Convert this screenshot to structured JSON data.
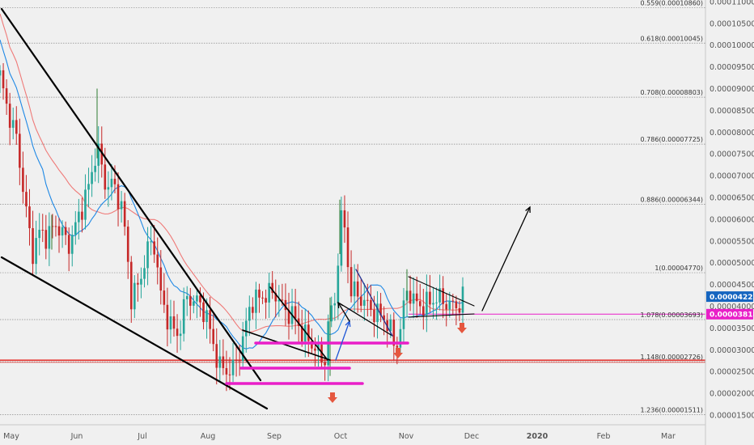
{
  "chart_data": {
    "type": "candlestick",
    "title": "",
    "xlabel": "",
    "ylabel": "",
    "x_ticks": [
      "May",
      "Jun",
      "Jul",
      "Aug",
      "Sep",
      "Oct",
      "Nov",
      "Dec",
      "2020",
      "Feb",
      "Mar"
    ],
    "y_ticks": [
      "0.00011000",
      "0.00010500",
      "0.00010000",
      "0.00009500",
      "0.00009000",
      "0.00008500",
      "0.00008000",
      "0.00007500",
      "0.00007000",
      "0.00006500",
      "0.00006000",
      "0.00005500",
      "0.00005000",
      "0.00004500",
      "0.00004000",
      "0.00003500",
      "0.00003000",
      "0.00002500",
      "0.00002000",
      "0.00001500"
    ],
    "ylim": [
      1.36e-05,
      0.0001105
    ],
    "grid": false,
    "price_tags": [
      {
        "label": "0.00004221",
        "value": 4.221e-05,
        "color": "#1565c0"
      },
      {
        "label": "0.00003818",
        "value": 3.818e-05,
        "color": "#e91ec8"
      }
    ],
    "fib_levels": [
      {
        "label": "0.559(0.00010860)",
        "value": 0.0001086
      },
      {
        "label": "0.618(0.00010045)",
        "value": 0.00010045
      },
      {
        "label": "0.708(0.00008803)",
        "value": 8.803e-05
      },
      {
        "label": "0.786(0.00007725)",
        "value": 7.725e-05
      },
      {
        "label": "0.886(0.00006344)",
        "value": 6.344e-05
      },
      {
        "label": "1(0.00004770)",
        "value": 4.77e-05
      },
      {
        "label": "1.078(0.00003693)",
        "value": 3.693e-05
      },
      {
        "label": "1.148(0.00002726)",
        "value": 2.726e-05
      },
      {
        "label": "1.236(0.00001511)",
        "value": 1.511e-05
      }
    ],
    "colors": {
      "background": "#f0f0f0",
      "up": "#26a69a",
      "down": "#c62828",
      "ma_fast": "#1e88e5",
      "ma_slow": "#ef5350",
      "support": "#e91ec8",
      "resistance": "#e53935",
      "trendline": "#000000",
      "flag": "#283593",
      "drop_marker": "#e5573f"
    }
  }
}
